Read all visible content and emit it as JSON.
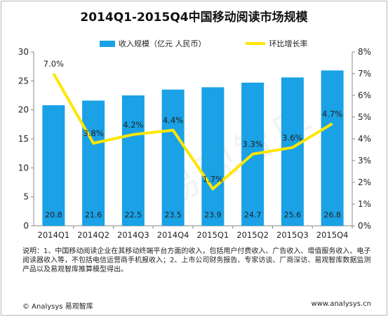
{
  "chart_data": {
    "type": "bar+line",
    "title": "2014Q1-2015Q4中国移动阅读市场规模",
    "categories": [
      "2014Q1",
      "2014Q2",
      "2014Q3",
      "2014Q4",
      "2015Q1",
      "2015Q2",
      "2015Q3",
      "2015Q4"
    ],
    "series": [
      {
        "name": "收入规模（亿元 人民币）",
        "type": "bar",
        "axis": "left",
        "values": [
          20.8,
          21.6,
          22.5,
          23.5,
          23.9,
          24.7,
          25.6,
          26.8
        ],
        "labels": [
          "20.8",
          "21.6",
          "22.5",
          "23.5",
          "23.9",
          "24.7",
          "25.6",
          "26.8"
        ]
      },
      {
        "name": "环比增长率",
        "type": "line",
        "axis": "right",
        "values": [
          7.0,
          3.8,
          4.2,
          4.4,
          1.7,
          3.3,
          3.6,
          4.7
        ],
        "labels": [
          "7.0%",
          "3.8%",
          "4.2%",
          "4.4%",
          "1.7%",
          "3.3%",
          "3.6%",
          "4.7%"
        ]
      }
    ],
    "ylim_left": [
      0,
      30
    ],
    "yticks_left": [
      "0",
      "5",
      "10",
      "15",
      "20",
      "25",
      "30"
    ],
    "ylim_right": [
      0,
      8
    ],
    "yticks_right": [
      "0%",
      "1%",
      "2%",
      "3%",
      "4%",
      "5%",
      "6%",
      "7%",
      "8%"
    ],
    "grid": false,
    "legend_position": "top",
    "colors": {
      "bar": "#1aa1e6",
      "line": "#ffe600"
    }
  },
  "note": "说明：1、中国移动阅读企业在其移动终端平台方面的收入，包括用户付费收入、广告收入、增值服务收入、电子阅读器收入等，不包括电信运营商手机报收入；2、上市公司财务报告、专家访谈、厂商深访、易观智库数据监测产品以及易观智库推算模型得出。",
  "footer": {
    "left": "© Analysys 易观智库",
    "right": "www.analysys.cn"
  },
  "watermark": "易观智库"
}
